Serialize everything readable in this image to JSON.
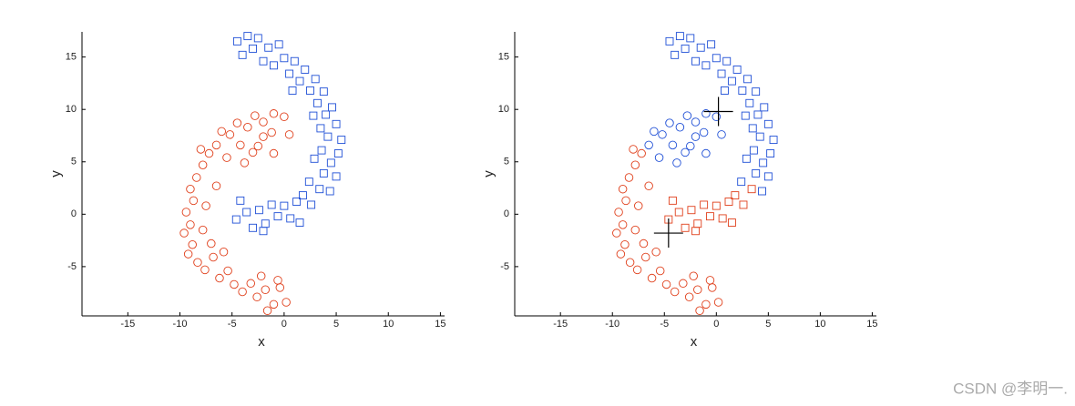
{
  "chart_data": [
    {
      "type": "scatter",
      "xlabel": "x",
      "ylabel": "y",
      "xlim": [
        -19.4,
        15.4
      ],
      "ylim": [
        -9.7,
        17.4
      ],
      "xticks": [
        -15,
        -10,
        -5,
        0,
        5,
        10,
        15
      ],
      "yticks": [
        -5,
        0,
        5,
        10,
        15
      ],
      "series": [
        {
          "color": "#1f4fd6",
          "marker": "square",
          "x": [
            -4.5,
            -4,
            -3.5,
            -3,
            -2.5,
            -2,
            -1.5,
            -1,
            -0.5,
            0,
            0.5,
            1,
            1.5,
            2,
            2.5,
            3,
            3.2,
            3.8,
            4,
            4.6,
            2.8,
            3.5,
            5,
            4.2,
            5.5,
            3.6,
            5.2,
            4.5,
            2.9,
            3.8,
            5,
            2.4,
            3.4,
            1.8,
            2.6,
            1.2,
            0.6,
            0,
            -0.6,
            -1.2,
            -1.8,
            -2.4,
            -3,
            -3.6,
            -4.2,
            -4.6,
            -2,
            1.5,
            4.4,
            0.8
          ],
          "y": [
            16.5,
            15.2,
            17,
            15.8,
            16.8,
            14.6,
            15.9,
            14.2,
            16.2,
            14.9,
            13.4,
            14.6,
            12.7,
            13.8,
            11.8,
            12.9,
            10.6,
            11.7,
            9.5,
            10.2,
            9.4,
            8.2,
            8.6,
            7.4,
            7.1,
            6.1,
            5.8,
            4.9,
            5.3,
            3.9,
            3.6,
            3.1,
            2.4,
            1.8,
            0.9,
            1.2,
            -0.4,
            0.8,
            -0.2,
            0.9,
            -0.9,
            0.4,
            -1.3,
            0.2,
            1.3,
            -0.5,
            -1.6,
            -0.8,
            2.2,
            11.8
          ]
        },
        {
          "color": "#e0401c",
          "marker": "circle",
          "x": [
            0,
            -1,
            -2,
            -2.8,
            -3.5,
            -4.5,
            -5.2,
            -6,
            -6.5,
            -7.2,
            -7.8,
            -8.4,
            -9,
            -8.7,
            -9.4,
            -9,
            -9.6,
            -8.8,
            -9.2,
            -8.3,
            -7.6,
            -6.8,
            -6.2,
            -5.4,
            -4.8,
            -4,
            -3.2,
            -2.6,
            -1.8,
            -1,
            -0.4,
            0.2,
            -1.6,
            -2.2,
            -0.6,
            -7.5,
            -7.8,
            -8,
            -5.5,
            -4.2,
            -3,
            -2,
            -1.2,
            0.5,
            -3.8,
            -6.5,
            -7,
            -5.8,
            -1,
            -2.5
          ],
          "y": [
            9.3,
            9.6,
            8.8,
            9.4,
            8.3,
            8.7,
            7.6,
            7.9,
            6.6,
            5.8,
            4.7,
            3.5,
            2.4,
            1.3,
            0.2,
            -1,
            -1.8,
            -2.9,
            -3.8,
            -4.6,
            -5.3,
            -4.1,
            -6.1,
            -5.4,
            -6.7,
            -7.4,
            -6.6,
            -7.9,
            -7.2,
            -8.6,
            -7,
            -8.4,
            -9.2,
            -5.9,
            -6.3,
            0.8,
            -1.5,
            6.2,
            5.4,
            6.6,
            5.9,
            7.4,
            7.8,
            7.6,
            4.9,
            2.7,
            -2.8,
            -3.6,
            5.8,
            6.5
          ]
        }
      ]
    },
    {
      "type": "scatter",
      "xlabel": "x",
      "ylabel": "y",
      "xlim": [
        -19.4,
        15.4
      ],
      "ylim": [
        -9.7,
        17.4
      ],
      "xticks": [
        -15,
        -10,
        -5,
        0,
        5,
        10,
        15
      ],
      "yticks": [
        -5,
        0,
        5,
        10,
        15
      ],
      "series": [
        {
          "color": "#1f4fd6",
          "marker": "square",
          "x": [
            -4.5,
            -4,
            -3.5,
            -3,
            -2.5,
            -2,
            -1.5,
            -1,
            -0.5,
            0,
            0.5,
            1,
            1.5,
            2,
            2.5,
            3,
            3.2,
            3.8,
            4,
            4.6,
            2.8,
            3.5,
            5,
            4.2,
            5.5,
            3.6,
            5.2,
            4.5,
            2.9,
            3.8,
            5,
            2.4,
            4.4,
            0.8
          ],
          "y": [
            16.5,
            15.2,
            17,
            15.8,
            16.8,
            14.6,
            15.9,
            14.2,
            16.2,
            14.9,
            13.4,
            14.6,
            12.7,
            13.8,
            11.8,
            12.9,
            10.6,
            11.7,
            9.5,
            10.2,
            9.4,
            8.2,
            8.6,
            7.4,
            7.1,
            6.1,
            5.8,
            4.9,
            5.3,
            3.9,
            3.6,
            3.1,
            2.2,
            11.8
          ]
        },
        {
          "color": "#e0401c",
          "marker": "square",
          "x": [
            3.4,
            1.8,
            2.6,
            1.2,
            0.6,
            0,
            -0.6,
            -1.2,
            -1.8,
            -2.4,
            -3,
            -3.6,
            -4.2,
            -4.6,
            -2,
            1.5
          ],
          "y": [
            2.4,
            1.8,
            0.9,
            1.2,
            -0.4,
            0.8,
            -0.2,
            0.9,
            -0.9,
            0.4,
            -1.3,
            0.2,
            1.3,
            -0.5,
            -1.6,
            -0.8
          ]
        },
        {
          "color": "#1f4fd6",
          "marker": "circle",
          "x": [
            0,
            -1,
            -2,
            -2.8,
            -3.5,
            -4.5,
            -5.2,
            -6,
            -6.5,
            -5.5,
            -4.2,
            -3,
            -2,
            -1.2,
            0.5,
            -3.8,
            -1,
            -2.5
          ],
          "y": [
            9.3,
            9.6,
            8.8,
            9.4,
            8.3,
            8.7,
            7.6,
            7.9,
            6.6,
            5.4,
            6.6,
            5.9,
            7.4,
            7.8,
            7.6,
            4.9,
            5.8,
            6.5
          ]
        },
        {
          "color": "#e0401c",
          "marker": "circle",
          "x": [
            -7.2,
            -7.8,
            -8.4,
            -9,
            -8.7,
            -9.4,
            -9,
            -9.6,
            -8.8,
            -9.2,
            -8.3,
            -7.6,
            -6.8,
            -6.2,
            -5.4,
            -4.8,
            -4,
            -3.2,
            -2.6,
            -1.8,
            -1,
            -0.4,
            0.2,
            -1.6,
            -2.2,
            -0.6,
            -7.5,
            -7.8,
            -8,
            -6.5,
            -7,
            -5.8
          ],
          "y": [
            5.8,
            4.7,
            3.5,
            2.4,
            1.3,
            0.2,
            -1,
            -1.8,
            -2.9,
            -3.8,
            -4.6,
            -5.3,
            -4.1,
            -6.1,
            -5.4,
            -6.7,
            -7.4,
            -6.6,
            -7.9,
            -7.2,
            -8.6,
            -7,
            -8.4,
            -9.2,
            -5.9,
            -6.3,
            0.8,
            -1.5,
            6.2,
            2.7,
            -2.8,
            -3.6
          ]
        },
        {
          "color": "#000000",
          "marker": "plus",
          "x": [
            0.2,
            -4.6
          ],
          "y": [
            9.8,
            -1.8
          ]
        }
      ]
    }
  ],
  "watermark": "CSDN @李明一."
}
